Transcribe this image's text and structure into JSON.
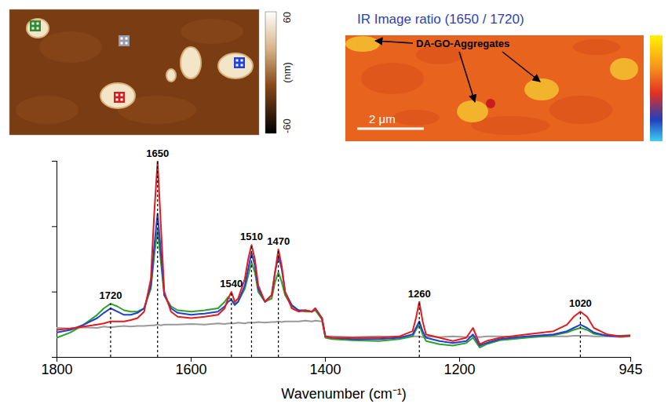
{
  "chart_data": {
    "type": "line",
    "x_label": "Wavenumber (cm⁻¹)",
    "xlim": [
      1800,
      945
    ],
    "xticks": [
      1800,
      1600,
      1400,
      1200,
      945
    ],
    "ylim": [
      0,
      3
    ],
    "yticks": [
      0,
      1,
      2,
      3
    ],
    "tick_labels": "x",
    "grid": false,
    "x": [
      1800,
      1780,
      1760,
      1740,
      1730,
      1720,
      1710,
      1700,
      1690,
      1680,
      1670,
      1660,
      1655,
      1650,
      1645,
      1640,
      1630,
      1620,
      1600,
      1580,
      1560,
      1550,
      1545,
      1540,
      1535,
      1530,
      1520,
      1515,
      1510,
      1505,
      1500,
      1490,
      1480,
      1475,
      1470,
      1465,
      1460,
      1450,
      1440,
      1430,
      1420,
      1415,
      1405,
      1400,
      1390,
      1360,
      1320,
      1290,
      1270,
      1265,
      1260,
      1255,
      1250,
      1230,
      1210,
      1190,
      1180,
      1170,
      1160,
      1140,
      1100,
      1060,
      1040,
      1030,
      1020,
      1010,
      1000,
      980,
      960,
      945
    ],
    "series": [
      {
        "color": "#999999",
        "values": [
          0.45,
          0.44,
          0.46,
          0.45,
          0.47,
          0.46,
          0.47,
          0.48,
          0.47,
          0.48,
          0.48,
          0.49,
          0.49,
          0.5,
          0.49,
          0.5,
          0.5,
          0.5,
          0.51,
          0.5,
          0.52,
          0.51,
          0.52,
          0.52,
          0.52,
          0.53,
          0.52,
          0.53,
          0.53,
          0.53,
          0.54,
          0.53,
          0.54,
          0.54,
          0.55,
          0.54,
          0.55,
          0.55,
          0.55,
          0.56,
          0.55,
          0.56,
          0.55,
          0.32,
          0.32,
          0.31,
          0.32,
          0.31,
          0.32,
          0.32,
          0.32,
          0.31,
          0.32,
          0.31,
          0.32,
          0.31,
          0.32,
          0.31,
          0.32,
          0.32,
          0.31,
          0.32,
          0.32,
          0.33,
          0.33,
          0.33,
          0.32,
          0.32,
          0.31,
          0.32
        ]
      },
      {
        "color": "#2ca02c",
        "values": [
          0.3,
          0.38,
          0.5,
          0.65,
          0.75,
          0.82,
          0.78,
          0.72,
          0.7,
          0.7,
          0.75,
          1.05,
          1.55,
          1.95,
          1.45,
          0.95,
          0.78,
          0.72,
          0.7,
          0.72,
          0.75,
          0.85,
          0.92,
          0.88,
          0.82,
          0.85,
          1.05,
          1.25,
          1.45,
          1.3,
          1.0,
          0.85,
          0.9,
          1.15,
          1.3,
          1.15,
          0.95,
          0.78,
          0.72,
          0.7,
          0.7,
          0.72,
          0.58,
          0.3,
          0.28,
          0.26,
          0.25,
          0.28,
          0.32,
          0.42,
          0.5,
          0.35,
          0.25,
          0.2,
          0.18,
          0.22,
          0.3,
          0.15,
          0.2,
          0.26,
          0.3,
          0.34,
          0.38,
          0.42,
          0.45,
          0.42,
          0.36,
          0.33,
          0.33,
          0.34
        ]
      },
      {
        "color": "#1f3fd1",
        "values": [
          0.38,
          0.42,
          0.5,
          0.6,
          0.68,
          0.75,
          0.7,
          0.65,
          0.65,
          0.68,
          0.75,
          1.1,
          1.7,
          2.2,
          1.6,
          0.95,
          0.75,
          0.68,
          0.65,
          0.67,
          0.7,
          0.78,
          0.85,
          0.88,
          0.8,
          0.85,
          1.1,
          1.35,
          1.6,
          1.4,
          1.05,
          0.85,
          0.95,
          1.3,
          1.55,
          1.35,
          1.0,
          0.8,
          0.72,
          0.72,
          0.7,
          0.75,
          0.6,
          0.32,
          0.3,
          0.28,
          0.28,
          0.3,
          0.35,
          0.45,
          0.55,
          0.4,
          0.3,
          0.25,
          0.22,
          0.25,
          0.35,
          0.18,
          0.22,
          0.28,
          0.32,
          0.35,
          0.4,
          0.45,
          0.5,
          0.45,
          0.38,
          0.33,
          0.32,
          0.33
        ]
      },
      {
        "color": "#e41a1c",
        "values": [
          0.42,
          0.44,
          0.47,
          0.5,
          0.52,
          0.55,
          0.55,
          0.55,
          0.57,
          0.6,
          0.7,
          1.2,
          2.2,
          3.0,
          2.0,
          1.0,
          0.7,
          0.62,
          0.6,
          0.62,
          0.65,
          0.75,
          0.9,
          1.0,
          0.85,
          0.9,
          1.2,
          1.5,
          1.72,
          1.5,
          1.1,
          0.85,
          0.95,
          1.3,
          1.65,
          1.4,
          1.0,
          0.75,
          0.7,
          0.72,
          0.7,
          0.75,
          0.6,
          0.32,
          0.3,
          0.3,
          0.3,
          0.32,
          0.4,
          0.6,
          0.85,
          0.55,
          0.35,
          0.3,
          0.25,
          0.3,
          0.45,
          0.2,
          0.25,
          0.3,
          0.35,
          0.4,
          0.5,
          0.62,
          0.7,
          0.62,
          0.45,
          0.35,
          0.32,
          0.33
        ]
      }
    ],
    "peaks": [
      {
        "x": 1720,
        "label": "1720"
      },
      {
        "x": 1650,
        "label": "1650"
      },
      {
        "x": 1540,
        "label": "1540"
      },
      {
        "x": 1510,
        "label": "1510"
      },
      {
        "x": 1470,
        "label": "1470"
      },
      {
        "x": 1260,
        "label": "1260"
      },
      {
        "x": 1020,
        "label": "1020"
      }
    ]
  },
  "afm_image": {
    "markers": [
      {
        "color": "#2e8b2e"
      },
      {
        "color": "#9a9aa8"
      },
      {
        "color": "#2040e0"
      },
      {
        "color": "#d02020"
      }
    ],
    "colorbar": {
      "range": [
        -60,
        60
      ],
      "ticks": [
        60,
        -60
      ],
      "label": "(nm)"
    }
  },
  "ir_image": {
    "title": "IR Image ratio (1650 / 1720)",
    "annotation": "DA-GO-Aggregates",
    "scale_bar": "2 μm"
  }
}
